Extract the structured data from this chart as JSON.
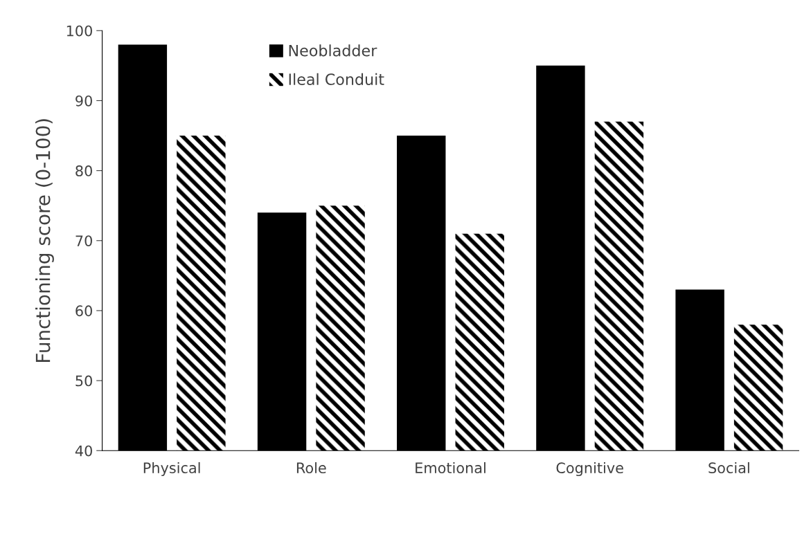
{
  "chart_data": {
    "type": "bar",
    "ylabel": "Functioning score (0-100)",
    "categories": [
      "Physical",
      "Role",
      "Emotional",
      "Cognitive",
      "Social"
    ],
    "series": [
      {
        "name": "Neobladder",
        "color": "#000000",
        "values": [
          98,
          74,
          85,
          95,
          63
        ]
      },
      {
        "name": "Ileal Conduit",
        "color": "#000000",
        "values": [
          85,
          75,
          71,
          87,
          58
        ]
      }
    ],
    "ylim": [
      40,
      100
    ],
    "yticks": [
      40,
      50,
      60,
      70,
      80,
      90,
      100
    ],
    "grid": false,
    "legend": "top"
  }
}
